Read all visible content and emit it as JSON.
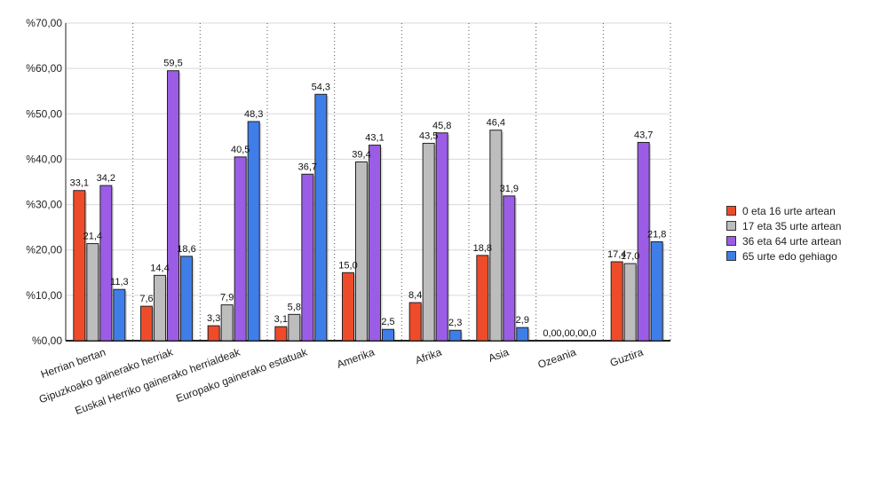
{
  "chart_data": {
    "type": "bar",
    "categories": [
      "Herrian bertan",
      "Gipuzkoako gainerako herriak",
      "Euskal Herriko gainerako herrialdeak",
      "Europako gainerako estatuak",
      "Amerika",
      "Afrika",
      "Asia",
      "Ozeania",
      "Guztira"
    ],
    "series": [
      {
        "name": "0 eta 16 urte artean",
        "color": "#ee4b2b",
        "values": [
          33.1,
          7.6,
          3.3,
          3.1,
          15.0,
          8.4,
          18.8,
          0.0,
          17.4
        ],
        "labels": [
          "33,1",
          "7,6",
          "3,3",
          "3,1",
          "15,0",
          "8,4",
          "18,8",
          "0,0",
          "17,4"
        ]
      },
      {
        "name": "17 eta 35 urte artean",
        "color": "#bdbdbd",
        "values": [
          21.4,
          14.4,
          7.9,
          5.8,
          39.4,
          43.5,
          46.4,
          0.0,
          17.0
        ],
        "labels": [
          "21,4",
          "14,4",
          "7,9",
          "5,8",
          "39,4",
          "43,5",
          "46,4",
          "0,0",
          "17,0"
        ]
      },
      {
        "name": "36 eta 64 urte artean",
        "color": "#9b5de5",
        "values": [
          34.2,
          59.5,
          40.5,
          36.7,
          43.1,
          45.8,
          31.9,
          0.0,
          43.7
        ],
        "labels": [
          "34,2",
          "59,5",
          "40,5",
          "36,7",
          "43,1",
          "45,8",
          "31,9",
          "0,0",
          "43,7"
        ]
      },
      {
        "name": "65 urte edo gehiago",
        "color": "#3f7ee8",
        "values": [
          11.3,
          18.6,
          48.3,
          54.3,
          2.5,
          2.3,
          2.9,
          0.0,
          21.8
        ],
        "labels": [
          "11,3",
          "18,6",
          "48,3",
          "54,3",
          "2,5",
          "2,3",
          "2,9",
          "0,0",
          "21,8"
        ]
      }
    ],
    "yticks": [
      "%0,00",
      "%10,00",
      "%20,00",
      "%30,00",
      "%40,00",
      "%50,00",
      "%60,00",
      "%70,00"
    ],
    "ylim": [
      0,
      70
    ],
    "xlabel": "",
    "ylabel": "",
    "grid": true,
    "legend_position": "right"
  }
}
